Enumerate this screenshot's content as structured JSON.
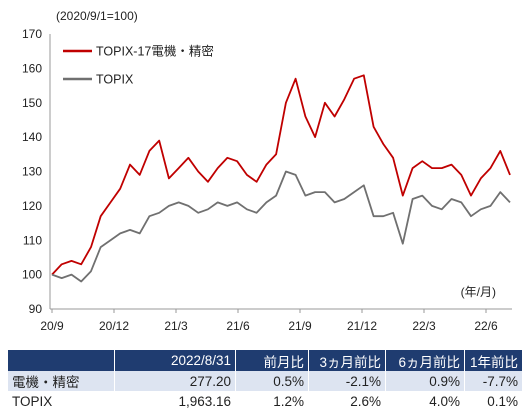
{
  "chart_data": {
    "type": "line",
    "ylabel_note": "(2020/9/1=100)",
    "xlabel_note": "(年/月)",
    "ylim": [
      90,
      170
    ],
    "yticks": [
      90,
      100,
      110,
      120,
      130,
      140,
      150,
      160,
      170
    ],
    "xticks": [
      "20/9",
      "20/12",
      "21/3",
      "21/6",
      "21/9",
      "21/12",
      "22/3",
      "22/6"
    ],
    "legend_position": "top-left",
    "grid": false,
    "series": [
      {
        "name": "TOPIX-17電機・精密",
        "color": "#c00000",
        "points": [
          [
            "20/9",
            100
          ],
          [
            "20/9",
            103
          ],
          [
            "20/10",
            104
          ],
          [
            "20/10",
            103
          ],
          [
            "20/11",
            108
          ],
          [
            "20/11",
            117
          ],
          [
            "20/12",
            121
          ],
          [
            "20/12",
            125
          ],
          [
            "21/1",
            132
          ],
          [
            "21/1",
            129
          ],
          [
            "21/2",
            136
          ],
          [
            "21/2",
            139
          ],
          [
            "21/3",
            128
          ],
          [
            "21/3",
            131
          ],
          [
            "21/4",
            134
          ],
          [
            "21/4",
            130
          ],
          [
            "21/5",
            127
          ],
          [
            "21/5",
            131
          ],
          [
            "21/6",
            134
          ],
          [
            "21/6",
            133
          ],
          [
            "21/7",
            129
          ],
          [
            "21/7",
            127
          ],
          [
            "21/8",
            132
          ],
          [
            "21/8",
            135
          ],
          [
            "21/9",
            150
          ],
          [
            "21/9",
            157
          ],
          [
            "21/10",
            146
          ],
          [
            "21/10",
            140
          ],
          [
            "21/11",
            150
          ],
          [
            "21/11",
            146
          ],
          [
            "21/12",
            151
          ],
          [
            "21/12",
            157
          ],
          [
            "22/1",
            158
          ],
          [
            "22/1",
            143
          ],
          [
            "22/2",
            138
          ],
          [
            "22/2",
            134
          ],
          [
            "22/3",
            123
          ],
          [
            "22/3",
            131
          ],
          [
            "22/4",
            133
          ],
          [
            "22/4",
            131
          ],
          [
            "22/5",
            131
          ],
          [
            "22/5",
            132
          ],
          [
            "22/6",
            129
          ],
          [
            "22/6",
            123
          ],
          [
            "22/7",
            128
          ],
          [
            "22/7",
            131
          ],
          [
            "22/8",
            136
          ],
          [
            "22/8",
            129
          ]
        ]
      },
      {
        "name": "TOPIX",
        "color": "#707070",
        "points": [
          [
            "20/9",
            100
          ],
          [
            "20/9",
            99
          ],
          [
            "20/10",
            100
          ],
          [
            "20/10",
            98
          ],
          [
            "20/11",
            101
          ],
          [
            "20/11",
            108
          ],
          [
            "20/12",
            110
          ],
          [
            "20/12",
            112
          ],
          [
            "21/1",
            113
          ],
          [
            "21/1",
            112
          ],
          [
            "21/2",
            117
          ],
          [
            "21/2",
            118
          ],
          [
            "21/3",
            120
          ],
          [
            "21/3",
            121
          ],
          [
            "21/4",
            120
          ],
          [
            "21/4",
            118
          ],
          [
            "21/5",
            119
          ],
          [
            "21/5",
            121
          ],
          [
            "21/6",
            120
          ],
          [
            "21/6",
            121
          ],
          [
            "21/7",
            119
          ],
          [
            "21/7",
            118
          ],
          [
            "21/8",
            121
          ],
          [
            "21/8",
            123
          ],
          [
            "21/9",
            130
          ],
          [
            "21/9",
            129
          ],
          [
            "21/10",
            123
          ],
          [
            "21/10",
            124
          ],
          [
            "21/11",
            124
          ],
          [
            "21/11",
            121
          ],
          [
            "21/12",
            122
          ],
          [
            "21/12",
            124
          ],
          [
            "22/1",
            126
          ],
          [
            "22/1",
            117
          ],
          [
            "22/2",
            117
          ],
          [
            "22/2",
            118
          ],
          [
            "22/3",
            109
          ],
          [
            "22/3",
            122
          ],
          [
            "22/4",
            123
          ],
          [
            "22/4",
            120
          ],
          [
            "22/5",
            119
          ],
          [
            "22/5",
            122
          ],
          [
            "22/6",
            121
          ],
          [
            "22/6",
            117
          ],
          [
            "22/7",
            119
          ],
          [
            "22/7",
            120
          ],
          [
            "22/8",
            124
          ],
          [
            "22/8",
            121
          ]
        ]
      }
    ]
  },
  "table": {
    "headers": [
      "",
      "2022/8/31",
      "前月比",
      "3ヵ月前比",
      "6ヵ月前比",
      "1年前比"
    ],
    "rows": [
      {
        "cells": [
          "電機・精密",
          "277.20",
          "0.5%",
          "-2.1%",
          "0.9%",
          "-7.7%"
        ]
      },
      {
        "cells": [
          "TOPIX",
          "1,963.16",
          "1.2%",
          "2.6%",
          "4.0%",
          "0.1%"
        ]
      }
    ]
  }
}
